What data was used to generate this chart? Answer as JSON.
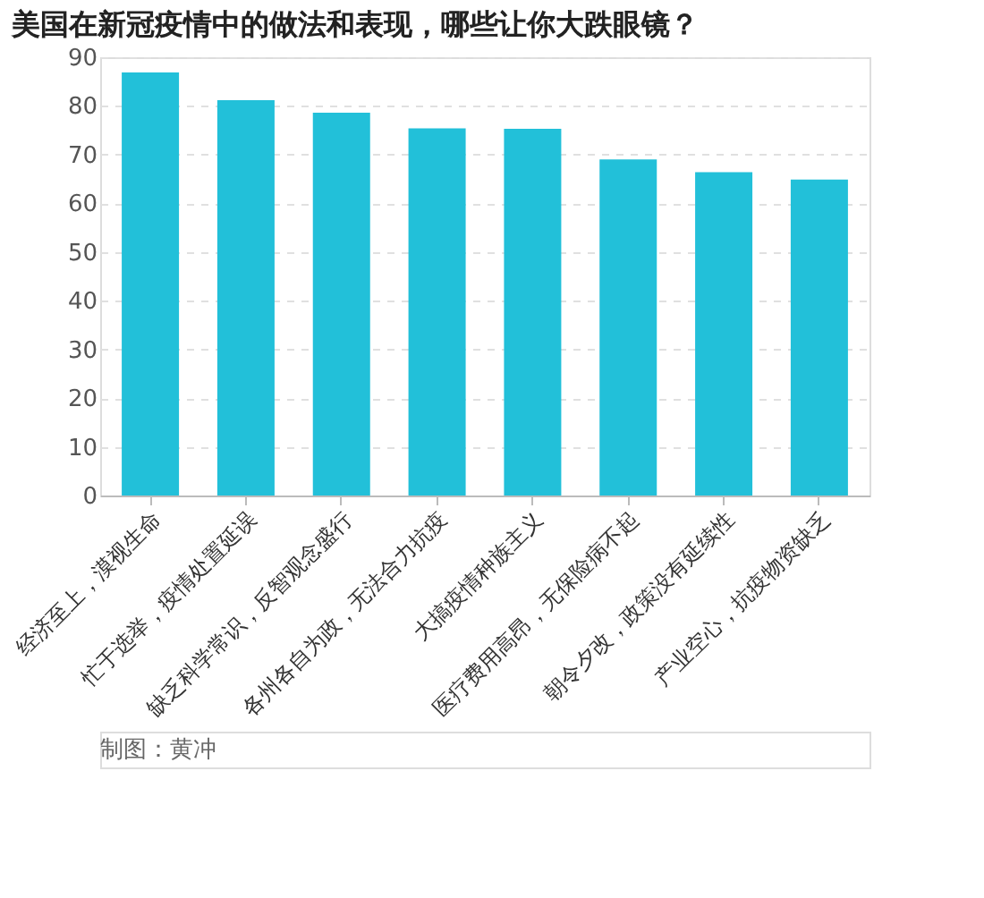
{
  "chart_data": {
    "type": "bar",
    "title": "美国在新冠疫情中的做法和表现，哪些让你大跌眼镜？",
    "categories": [
      "经济至上，漠视生命",
      "忙于选举，疫情处置延误",
      "缺乏科学常识，反智观念盛行",
      "各州各自为政，无法合力抗疫",
      "大搞疫情种族主义",
      "医疗费用高昂，无保险病不起",
      "朝令夕改，政策没有延续性",
      "产业空心，抗疫物资缺乏"
    ],
    "values": [
      86.9,
      81.2,
      78.6,
      75.4,
      75.3,
      69.0,
      66.4,
      64.9
    ],
    "color": "#22c0d9",
    "ylim": [
      0,
      90
    ],
    "yticks": [
      0,
      10,
      20,
      30,
      40,
      50,
      60,
      70,
      80,
      90
    ],
    "grid": "y",
    "annotations": [
      "制图：黄冲"
    ]
  }
}
